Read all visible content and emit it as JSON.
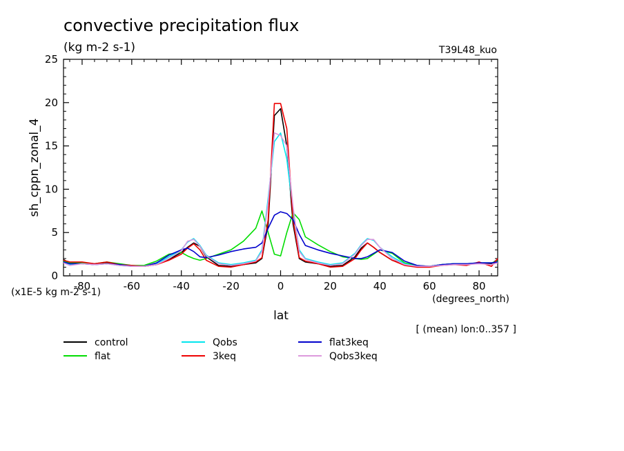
{
  "chart_data": {
    "type": "line",
    "title": "convective precipitation flux",
    "units": "(kg m-2 s-1)",
    "experiment": "T39L48_kuo",
    "ylabel": "sh_cppn_zonal_4",
    "xlabel": "lat",
    "xunits": "(degrees_north)",
    "scale_note": "(x1E-5 kg m-2 s-1)",
    "footnote": "[ (mean) lon:0..357 ]",
    "xlim": [
      -87.5,
      87.5
    ],
    "ylim": [
      0,
      25
    ],
    "xticks": [
      -80,
      -60,
      -40,
      -20,
      0,
      20,
      40,
      60,
      80
    ],
    "xtick_labels": [
      "-80",
      "-60",
      "-40",
      "-20",
      "0",
      "20",
      "40",
      "60",
      "80"
    ],
    "yticks": [
      0,
      5,
      10,
      15,
      20,
      25
    ],
    "ytick_labels": [
      "0",
      "5",
      "10",
      "15",
      "20",
      "25"
    ],
    "grid": false,
    "legend_position": "below",
    "x": [
      -87.5,
      -85,
      -80,
      -75,
      -70,
      -65,
      -60,
      -55,
      -50,
      -45,
      -40,
      -37.5,
      -35,
      -32.5,
      -30,
      -25,
      -20,
      -15,
      -10,
      -7.5,
      -5,
      -2.5,
      0,
      2.5,
      5,
      7.5,
      10,
      15,
      20,
      25,
      30,
      32.5,
      35,
      37.5,
      40,
      45,
      50,
      55,
      60,
      65,
      70,
      75,
      80,
      85,
      87.5
    ],
    "series": [
      {
        "name": "control",
        "color": "#000000",
        "values": [
          1.9,
          1.4,
          1.5,
          1.4,
          1.5,
          1.3,
          1.2,
          1.1,
          1.3,
          1.9,
          2.7,
          3.3,
          3.8,
          3.4,
          2.2,
          1.2,
          1.1,
          1.3,
          1.5,
          2.0,
          6.0,
          18.5,
          19.3,
          15.0,
          6.0,
          2.0,
          1.6,
          1.4,
          1.1,
          1.2,
          2.2,
          3.2,
          3.8,
          3.3,
          2.7,
          1.8,
          1.3,
          1.1,
          1.1,
          1.3,
          1.4,
          1.3,
          1.5,
          1.4,
          1.9
        ]
      },
      {
        "name": "flat",
        "color": "#00dd00",
        "values": [
          1.7,
          1.5,
          1.5,
          1.4,
          1.6,
          1.4,
          1.2,
          1.2,
          1.7,
          2.5,
          2.7,
          2.3,
          2.0,
          1.8,
          2.0,
          2.5,
          3.0,
          4.0,
          5.5,
          7.5,
          5.0,
          2.5,
          2.3,
          5.0,
          7.3,
          6.5,
          4.5,
          3.6,
          2.8,
          2.2,
          2.0,
          1.9,
          2.0,
          2.5,
          3.0,
          2.6,
          1.5,
          1.2,
          1.1,
          1.3,
          1.4,
          1.4,
          1.5,
          1.5,
          1.7
        ]
      },
      {
        "name": "Qobs",
        "color": "#00e5ee",
        "values": [
          1.6,
          1.3,
          1.4,
          1.3,
          1.4,
          1.2,
          1.1,
          1.1,
          1.4,
          2.2,
          3.0,
          3.9,
          4.3,
          3.5,
          2.4,
          1.5,
          1.3,
          1.5,
          1.8,
          3.0,
          9.0,
          15.5,
          16.5,
          13.5,
          7.5,
          3.0,
          2.0,
          1.6,
          1.3,
          1.5,
          2.6,
          3.6,
          4.3,
          4.1,
          3.3,
          2.2,
          1.4,
          1.1,
          1.1,
          1.3,
          1.4,
          1.4,
          1.5,
          1.5,
          1.6
        ]
      },
      {
        "name": "3keq",
        "color": "#ee0000",
        "values": [
          1.8,
          1.6,
          1.6,
          1.4,
          1.6,
          1.3,
          1.2,
          1.1,
          1.3,
          1.8,
          2.5,
          3.2,
          3.7,
          3.0,
          1.8,
          1.1,
          1.0,
          1.3,
          1.6,
          2.1,
          6.5,
          19.9,
          19.9,
          17.0,
          6.5,
          2.1,
          1.7,
          1.4,
          1.0,
          1.1,
          2.0,
          3.0,
          3.8,
          3.3,
          2.7,
          1.8,
          1.2,
          1.0,
          1.0,
          1.2,
          1.3,
          1.2,
          1.6,
          1.1,
          2.0
        ]
      },
      {
        "name": "flat3keq",
        "color": "#0000cc",
        "values": [
          1.6,
          1.4,
          1.4,
          1.3,
          1.4,
          1.3,
          1.1,
          1.1,
          1.5,
          2.4,
          3.0,
          3.2,
          2.8,
          2.2,
          2.1,
          2.4,
          2.8,
          3.1,
          3.3,
          3.8,
          5.5,
          7.0,
          7.4,
          7.2,
          6.5,
          4.8,
          3.5,
          3.0,
          2.6,
          2.3,
          2.0,
          2.0,
          2.2,
          2.6,
          3.0,
          2.7,
          1.7,
          1.2,
          1.1,
          1.3,
          1.4,
          1.4,
          1.5,
          1.5,
          1.6
        ]
      },
      {
        "name": "Qobs3keq",
        "color": "#dd99dd",
        "values": [
          1.5,
          1.2,
          1.4,
          1.3,
          1.4,
          1.2,
          1.1,
          1.1,
          1.3,
          2.0,
          2.9,
          4.0,
          4.2,
          3.4,
          2.3,
          1.4,
          1.2,
          1.4,
          1.7,
          2.8,
          8.5,
          16.5,
          16.2,
          15.0,
          8.0,
          2.8,
          1.9,
          1.5,
          1.2,
          1.4,
          2.5,
          3.5,
          4.2,
          4.2,
          3.3,
          2.0,
          1.3,
          1.1,
          1.1,
          1.2,
          1.3,
          1.3,
          1.4,
          1.3,
          1.5
        ]
      }
    ]
  }
}
